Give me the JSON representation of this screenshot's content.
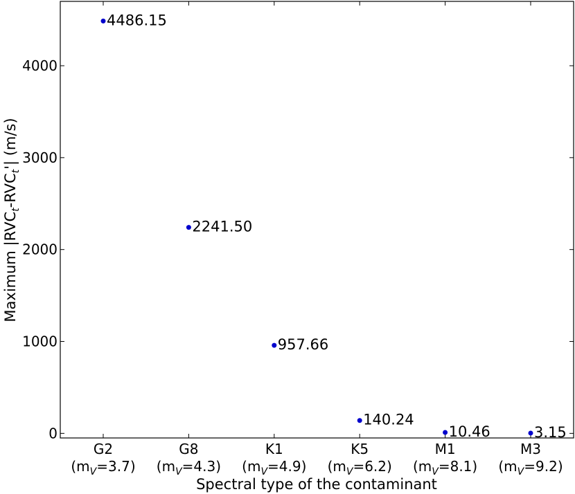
{
  "chart_data": {
    "type": "scatter",
    "title": "",
    "xlabel": "Spectral type of the contaminant",
    "ylabel_parts": {
      "base": "Maximum |RVC",
      "sub1": "t",
      "mid": "-RVC",
      "sub2": "t",
      "tail": "'| (m/s)"
    },
    "categories": [
      {
        "type": "G2",
        "mag_prefix": "(m",
        "mag_sub": "V",
        "mag_value": "=3.7)"
      },
      {
        "type": "G8",
        "mag_prefix": "(m",
        "mag_sub": "V",
        "mag_value": "=4.3)"
      },
      {
        "type": "K1",
        "mag_prefix": "(m",
        "mag_sub": "V",
        "mag_value": "=4.9)"
      },
      {
        "type": "K5",
        "mag_prefix": "(m",
        "mag_sub": "V",
        "mag_value": "=6.2)"
      },
      {
        "type": "M1",
        "mag_prefix": "(m",
        "mag_sub": "V",
        "mag_value": "=8.1)"
      },
      {
        "type": "M3",
        "mag_prefix": "(m",
        "mag_sub": "V",
        "mag_value": "=9.2)"
      }
    ],
    "values": [
      4486.15,
      2241.5,
      957.66,
      140.24,
      10.46,
      3.15
    ],
    "data_labels": [
      "4486.15",
      "2241.50",
      "957.66",
      "140.24",
      "10.46",
      "3.15"
    ],
    "ylim": [
      -50,
      4700
    ],
    "yticks": [
      0,
      1000,
      2000,
      3000,
      4000
    ],
    "marker_color": "#0000cc",
    "grid": false,
    "legend": "none"
  }
}
